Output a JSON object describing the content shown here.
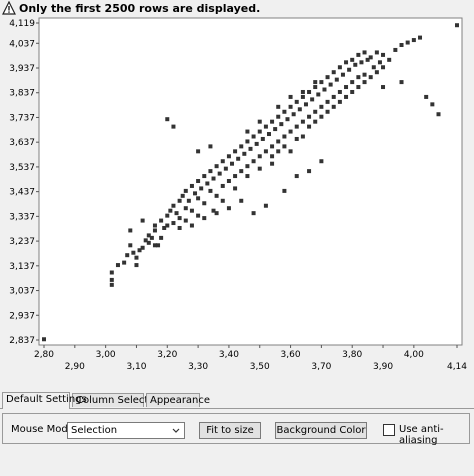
{
  "warning": {
    "icon": "warning-icon",
    "text": "Only the first 2500 rows are displayed."
  },
  "tabs": [
    {
      "label": "Default Settings",
      "active": true
    },
    {
      "label": "Column Selection",
      "active": false
    },
    {
      "label": "Appearance",
      "active": false
    }
  ],
  "settings": {
    "mouse_mode_label": "Mouse Mode",
    "mouse_mode_value": "Selection",
    "fit_button": "Fit to size",
    "background_button": "Background Color",
    "antialias_label": "Use anti-aliasing",
    "antialias_checked": false
  },
  "chart_data": {
    "type": "scatter",
    "x_ticks_top": [
      "2,80",
      "3,00",
      "3,20",
      "3,40",
      "3,60",
      "3,80",
      "4,00"
    ],
    "x_ticks_bottom": [
      "2,90",
      "3,10",
      "3,30",
      "3,50",
      "3,70",
      "3,90",
      "4,14"
    ],
    "y_ticks": [
      "4,119",
      "4,037",
      "3,937",
      "3,837",
      "3,737",
      "3,637",
      "3,537",
      "3,437",
      "3,337",
      "3,237",
      "3,137",
      "3,037",
      "2,937",
      "2,837"
    ],
    "xlim": [
      2.8,
      4.14
    ],
    "ylim": [
      2.837,
      4.119
    ],
    "marker_color": "#333333",
    "points": [
      [
        2.8,
        2.84
      ],
      [
        3.02,
        3.06
      ],
      [
        3.02,
        3.08
      ],
      [
        3.02,
        3.11
      ],
      [
        3.04,
        3.14
      ],
      [
        3.06,
        3.15
      ],
      [
        3.07,
        3.18
      ],
      [
        3.08,
        3.22
      ],
      [
        3.09,
        3.19
      ],
      [
        3.1,
        3.17
      ],
      [
        3.11,
        3.2
      ],
      [
        3.12,
        3.21
      ],
      [
        3.1,
        3.14
      ],
      [
        3.13,
        3.24
      ],
      [
        3.14,
        3.23
      ],
      [
        3.15,
        3.25
      ],
      [
        3.16,
        3.28
      ],
      [
        3.16,
        3.3
      ],
      [
        3.17,
        3.22
      ],
      [
        3.18,
        3.32
      ],
      [
        3.19,
        3.29
      ],
      [
        3.2,
        3.34
      ],
      [
        3.2,
        3.3
      ],
      [
        3.21,
        3.36
      ],
      [
        3.22,
        3.31
      ],
      [
        3.22,
        3.38
      ],
      [
        3.23,
        3.35
      ],
      [
        3.24,
        3.4
      ],
      [
        3.24,
        3.33
      ],
      [
        3.25,
        3.42
      ],
      [
        3.26,
        3.37
      ],
      [
        3.26,
        3.44
      ],
      [
        3.27,
        3.4
      ],
      [
        3.28,
        3.46
      ],
      [
        3.28,
        3.36
      ],
      [
        3.29,
        3.43
      ],
      [
        3.3,
        3.48
      ],
      [
        3.3,
        3.41
      ],
      [
        3.31,
        3.45
      ],
      [
        3.32,
        3.5
      ],
      [
        3.32,
        3.39
      ],
      [
        3.33,
        3.47
      ],
      [
        3.34,
        3.52
      ],
      [
        3.34,
        3.44
      ],
      [
        3.35,
        3.49
      ],
      [
        3.36,
        3.54
      ],
      [
        3.36,
        3.42
      ],
      [
        3.37,
        3.51
      ],
      [
        3.38,
        3.56
      ],
      [
        3.38,
        3.46
      ],
      [
        3.39,
        3.53
      ],
      [
        3.4,
        3.58
      ],
      [
        3.4,
        3.48
      ],
      [
        3.41,
        3.55
      ],
      [
        3.42,
        3.6
      ],
      [
        3.42,
        3.5
      ],
      [
        3.43,
        3.57
      ],
      [
        3.44,
        3.62
      ],
      [
        3.44,
        3.52
      ],
      [
        3.45,
        3.59
      ],
      [
        3.46,
        3.64
      ],
      [
        3.46,
        3.54
      ],
      [
        3.47,
        3.61
      ],
      [
        3.48,
        3.66
      ],
      [
        3.48,
        3.56
      ],
      [
        3.49,
        3.63
      ],
      [
        3.5,
        3.68
      ],
      [
        3.5,
        3.58
      ],
      [
        3.51,
        3.65
      ],
      [
        3.52,
        3.7
      ],
      [
        3.52,
        3.6
      ],
      [
        3.53,
        3.67
      ],
      [
        3.54,
        3.72
      ],
      [
        3.54,
        3.62
      ],
      [
        3.55,
        3.69
      ],
      [
        3.56,
        3.74
      ],
      [
        3.56,
        3.64
      ],
      [
        3.57,
        3.71
      ],
      [
        3.58,
        3.76
      ],
      [
        3.58,
        3.66
      ],
      [
        3.59,
        3.73
      ],
      [
        3.6,
        3.78
      ],
      [
        3.6,
        3.68
      ],
      [
        3.61,
        3.75
      ],
      [
        3.62,
        3.8
      ],
      [
        3.62,
        3.7
      ],
      [
        3.63,
        3.77
      ],
      [
        3.64,
        3.82
      ],
      [
        3.64,
        3.72
      ],
      [
        3.65,
        3.79
      ],
      [
        3.66,
        3.84
      ],
      [
        3.66,
        3.74
      ],
      [
        3.67,
        3.81
      ],
      [
        3.68,
        3.86
      ],
      [
        3.68,
        3.76
      ],
      [
        3.69,
        3.83
      ],
      [
        3.7,
        3.88
      ],
      [
        3.7,
        3.78
      ],
      [
        3.71,
        3.85
      ],
      [
        3.72,
        3.9
      ],
      [
        3.72,
        3.8
      ],
      [
        3.73,
        3.87
      ],
      [
        3.74,
        3.92
      ],
      [
        3.74,
        3.82
      ],
      [
        3.75,
        3.89
      ],
      [
        3.76,
        3.94
      ],
      [
        3.76,
        3.84
      ],
      [
        3.77,
        3.91
      ],
      [
        3.78,
        3.96
      ],
      [
        3.78,
        3.86
      ],
      [
        3.79,
        3.93
      ],
      [
        3.8,
        3.97
      ],
      [
        3.8,
        3.88
      ],
      [
        3.81,
        3.95
      ],
      [
        3.82,
        3.99
      ],
      [
        3.82,
        3.9
      ],
      [
        3.83,
        3.96
      ],
      [
        3.84,
        4.0
      ],
      [
        3.84,
        3.91
      ],
      [
        3.85,
        3.97
      ],
      [
        3.86,
        3.98
      ],
      [
        3.87,
        3.94
      ],
      [
        3.88,
        4.0
      ],
      [
        3.89,
        3.96
      ],
      [
        3.9,
        3.99
      ],
      [
        3.92,
        3.97
      ],
      [
        3.94,
        4.01
      ],
      [
        3.96,
        4.03
      ],
      [
        3.98,
        4.04
      ],
      [
        4.0,
        4.05
      ],
      [
        4.02,
        4.06
      ],
      [
        4.14,
        4.11
      ],
      [
        4.04,
        3.82
      ],
      [
        4.06,
        3.79
      ],
      [
        4.08,
        3.75
      ],
      [
        3.96,
        3.88
      ],
      [
        3.9,
        3.86
      ],
      [
        3.22,
        3.7
      ],
      [
        3.2,
        3.73
      ],
      [
        3.08,
        3.28
      ],
      [
        3.12,
        3.32
      ],
      [
        3.14,
        3.26
      ],
      [
        3.7,
        3.56
      ],
      [
        3.66,
        3.52
      ],
      [
        3.62,
        3.5
      ],
      [
        3.58,
        3.44
      ],
      [
        3.52,
        3.38
      ],
      [
        3.48,
        3.35
      ],
      [
        3.44,
        3.4
      ],
      [
        3.4,
        3.37
      ],
      [
        3.36,
        3.35
      ],
      [
        3.32,
        3.33
      ],
      [
        3.28,
        3.3
      ],
      [
        3.24,
        3.29
      ],
      [
        3.54,
        3.55
      ],
      [
        3.56,
        3.6
      ],
      [
        3.58,
        3.62
      ],
      [
        3.6,
        3.6
      ],
      [
        3.62,
        3.65
      ],
      [
        3.64,
        3.66
      ],
      [
        3.66,
        3.7
      ],
      [
        3.68,
        3.72
      ],
      [
        3.7,
        3.74
      ],
      [
        3.72,
        3.76
      ],
      [
        3.74,
        3.78
      ],
      [
        3.76,
        3.8
      ],
      [
        3.78,
        3.82
      ],
      [
        3.8,
        3.84
      ],
      [
        3.82,
        3.86
      ],
      [
        3.84,
        3.88
      ],
      [
        3.86,
        3.9
      ],
      [
        3.88,
        3.92
      ],
      [
        3.9,
        3.94
      ],
      [
        3.35,
        3.36
      ],
      [
        3.38,
        3.4
      ],
      [
        3.42,
        3.45
      ],
      [
        3.46,
        3.5
      ],
      [
        3.5,
        3.53
      ],
      [
        3.54,
        3.58
      ],
      [
        3.3,
        3.34
      ],
      [
        3.26,
        3.32
      ],
      [
        3.18,
        3.25
      ],
      [
        3.16,
        3.22
      ],
      [
        3.3,
        3.6
      ],
      [
        3.34,
        3.62
      ],
      [
        3.46,
        3.68
      ],
      [
        3.5,
        3.72
      ],
      [
        3.56,
        3.78
      ],
      [
        3.6,
        3.82
      ],
      [
        3.64,
        3.84
      ],
      [
        3.68,
        3.88
      ]
    ]
  }
}
